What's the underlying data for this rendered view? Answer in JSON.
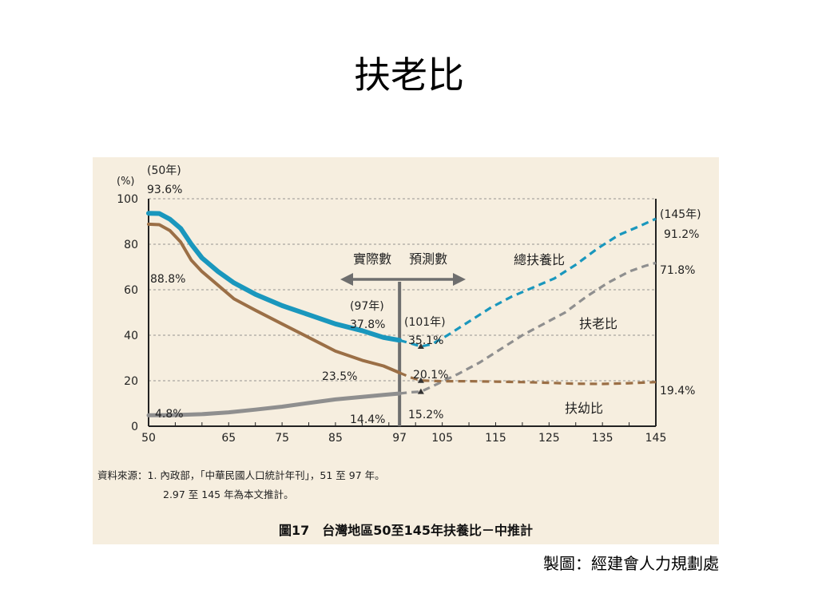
{
  "slide": {
    "title": "扶老比",
    "credit": "製圖：經建會人力規劃處"
  },
  "figure": {
    "source_line_1": "資料來源：1. 內政部，「中華民國人口統計年刊」，51 至 97 年。",
    "source_line_2": "2.97 至 145 年為本文推計。",
    "caption": "圖17　台灣地區50至145年扶養比－中推計"
  },
  "colors": {
    "total": "#1a97bd",
    "elderly": "#8f8f8f",
    "youth": "#9b6f46",
    "background": "#f6eedf",
    "divider": "#6e6e6e"
  },
  "chart_data": {
    "type": "line",
    "ylabel": "(%)",
    "xlim": [
      50,
      145
    ],
    "ylim": [
      0,
      100
    ],
    "x_ticks": [
      50,
      65,
      75,
      85,
      97,
      105,
      115,
      125,
      135,
      145
    ],
    "y_ticks": [
      0,
      20,
      40,
      60,
      80,
      100
    ],
    "grid_y": true,
    "split_year": 97,
    "split_labels": {
      "actual": "實際數",
      "projected": "預測數"
    },
    "series": [
      {
        "name": "總扶養比",
        "color_key": "total",
        "points": [
          [
            50,
            93.6
          ],
          [
            52,
            93.5
          ],
          [
            54,
            91
          ],
          [
            56,
            87
          ],
          [
            58,
            80
          ],
          [
            60,
            74
          ],
          [
            63,
            68
          ],
          [
            66,
            63
          ],
          [
            70,
            58
          ],
          [
            75,
            53
          ],
          [
            80,
            49
          ],
          [
            85,
            45
          ],
          [
            90,
            42
          ],
          [
            94,
            39
          ],
          [
            97,
            37.8
          ],
          [
            99,
            36.5
          ],
          [
            101,
            35.1
          ],
          [
            103,
            36
          ],
          [
            106,
            40
          ],
          [
            110,
            46
          ],
          [
            114,
            52
          ],
          [
            118,
            57
          ],
          [
            122,
            61
          ],
          [
            126,
            65
          ],
          [
            130,
            71
          ],
          [
            134,
            78
          ],
          [
            138,
            84
          ],
          [
            142,
            88
          ],
          [
            145,
            91.2
          ]
        ]
      },
      {
        "name": "扶老比",
        "color_key": "elderly",
        "points": [
          [
            50,
            4.8
          ],
          [
            55,
            4.9
          ],
          [
            60,
            5.3
          ],
          [
            65,
            6.1
          ],
          [
            70,
            7.3
          ],
          [
            75,
            8.6
          ],
          [
            80,
            10.2
          ],
          [
            85,
            11.8
          ],
          [
            90,
            12.9
          ],
          [
            94,
            13.8
          ],
          [
            97,
            14.4
          ],
          [
            99,
            14.9
          ],
          [
            101,
            15.2
          ],
          [
            104,
            18.5
          ],
          [
            108,
            23
          ],
          [
            112,
            28
          ],
          [
            116,
            34
          ],
          [
            120,
            40
          ],
          [
            124,
            45
          ],
          [
            128,
            50
          ],
          [
            132,
            57
          ],
          [
            136,
            63
          ],
          [
            140,
            68
          ],
          [
            143,
            70.5
          ],
          [
            145,
            71.8
          ]
        ]
      },
      {
        "name": "扶幼比",
        "color_key": "youth",
        "points": [
          [
            50,
            88.8
          ],
          [
            52,
            88.6
          ],
          [
            54,
            86
          ],
          [
            56,
            81
          ],
          [
            58,
            73
          ],
          [
            60,
            68
          ],
          [
            63,
            62
          ],
          [
            66,
            56
          ],
          [
            70,
            51
          ],
          [
            75,
            45
          ],
          [
            80,
            39
          ],
          [
            85,
            33
          ],
          [
            90,
            29
          ],
          [
            94,
            26.5
          ],
          [
            97,
            23.5
          ],
          [
            99,
            21.5
          ],
          [
            101,
            20.1
          ],
          [
            105,
            19.8
          ],
          [
            110,
            19.8
          ],
          [
            115,
            19.6
          ],
          [
            120,
            19.4
          ],
          [
            125,
            19.1
          ],
          [
            130,
            18.7
          ],
          [
            135,
            18.6
          ],
          [
            140,
            18.9
          ],
          [
            145,
            19.4
          ]
        ]
      }
    ],
    "annotations": [
      {
        "text": "(50年)",
        "x": 50,
        "y": 93.6,
        "role": "year"
      },
      {
        "text": "93.6%",
        "x": 50,
        "y": 93.6,
        "role": "value"
      },
      {
        "text": "88.8%",
        "x": 50,
        "y": 88.8,
        "role": "value"
      },
      {
        "text": "4.8%",
        "x": 50,
        "y": 4.8,
        "role": "value"
      },
      {
        "text": "(97年)",
        "x": 97,
        "y": 37.8,
        "role": "year"
      },
      {
        "text": "37.8%",
        "x": 97,
        "y": 37.8,
        "role": "value"
      },
      {
        "text": "23.5%",
        "x": 97,
        "y": 23.5,
        "role": "value"
      },
      {
        "text": "14.4%",
        "x": 97,
        "y": 14.4,
        "role": "value"
      },
      {
        "text": "(101年)",
        "x": 101,
        "y": 35.1,
        "role": "year"
      },
      {
        "text": "35.1%",
        "x": 101,
        "y": 35.1,
        "role": "value"
      },
      {
        "text": "20.1%",
        "x": 101,
        "y": 20.1,
        "role": "value"
      },
      {
        "text": "15.2%",
        "x": 101,
        "y": 15.2,
        "role": "value"
      },
      {
        "text": "(145年)",
        "x": 145,
        "y": 91.2,
        "role": "year"
      },
      {
        "text": "91.2%",
        "x": 145,
        "y": 91.2,
        "role": "value"
      },
      {
        "text": "71.8%",
        "x": 145,
        "y": 71.8,
        "role": "value"
      },
      {
        "text": "19.4%",
        "x": 145,
        "y": 19.4,
        "role": "value"
      }
    ]
  }
}
